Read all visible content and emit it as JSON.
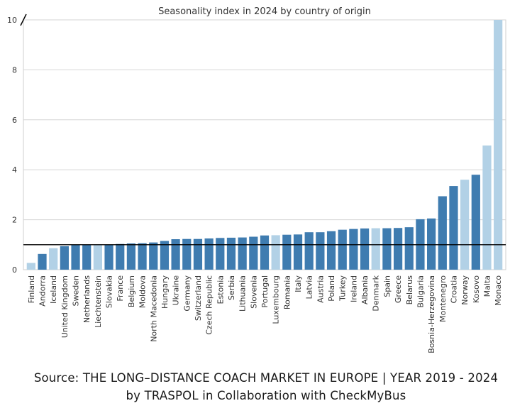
{
  "chart_data": {
    "type": "bar",
    "title": "Seasonality index in 2024 by country of origin",
    "xlabel": "",
    "ylabel": "",
    "ylim": [
      0,
      10
    ],
    "yticks": [
      0,
      2,
      4,
      6,
      8,
      10
    ],
    "y_axis_break": true,
    "grid": "horizontal",
    "reference_line": 1,
    "categories": [
      "Finland",
      "Andorra",
      "Iceland",
      "United Kingdom",
      "Sweden",
      "Netherlands",
      "Liechtenstein",
      "Slovakia",
      "France",
      "Belgium",
      "Moldova",
      "North Macedonia",
      "Hungary",
      "Ukraine",
      "Germany",
      "Switzerland",
      "Czech Republic",
      "Estonia",
      "Serbia",
      "Lithuania",
      "Slovenia",
      "Portugal",
      "Luxembourg",
      "Romania",
      "Italy",
      "Latvia",
      "Austria",
      "Poland",
      "Turkey",
      "Ireland",
      "Albania",
      "Denmark",
      "Spain",
      "Greece",
      "Belarus",
      "Bulgaria",
      "Bosnia-Herzegovina",
      "Montenegro",
      "Croatia",
      "Norway",
      "Kosovo",
      "Malta",
      "Monaco"
    ],
    "values": [
      0.27,
      0.63,
      0.86,
      0.94,
      0.98,
      1.0,
      1.0,
      1.0,
      1.03,
      1.05,
      1.06,
      1.09,
      1.15,
      1.22,
      1.23,
      1.23,
      1.25,
      1.27,
      1.28,
      1.29,
      1.32,
      1.37,
      1.38,
      1.4,
      1.41,
      1.5,
      1.5,
      1.54,
      1.6,
      1.63,
      1.65,
      1.66,
      1.66,
      1.67,
      1.7,
      2.02,
      2.05,
      2.94,
      3.35,
      3.6,
      3.8,
      4.97,
      10.0
    ],
    "highlighted": [
      true,
      false,
      true,
      false,
      false,
      false,
      true,
      false,
      false,
      false,
      false,
      false,
      false,
      false,
      false,
      false,
      false,
      false,
      false,
      false,
      false,
      false,
      true,
      false,
      false,
      false,
      false,
      false,
      false,
      false,
      false,
      true,
      false,
      false,
      false,
      false,
      false,
      false,
      false,
      true,
      false,
      true,
      true
    ],
    "colors": {
      "primary": "#3f7cb0",
      "highlight": "#b2d1e6",
      "grid": "#d6d6d6",
      "reference_line": "#000000"
    }
  },
  "source": {
    "line1": "Source: THE LONG–DISTANCE COACH MARKET IN EUROPE | YEAR 2019 - 2024",
    "line2": "by TRASPOL in Collaboration with CheckMyBus"
  }
}
